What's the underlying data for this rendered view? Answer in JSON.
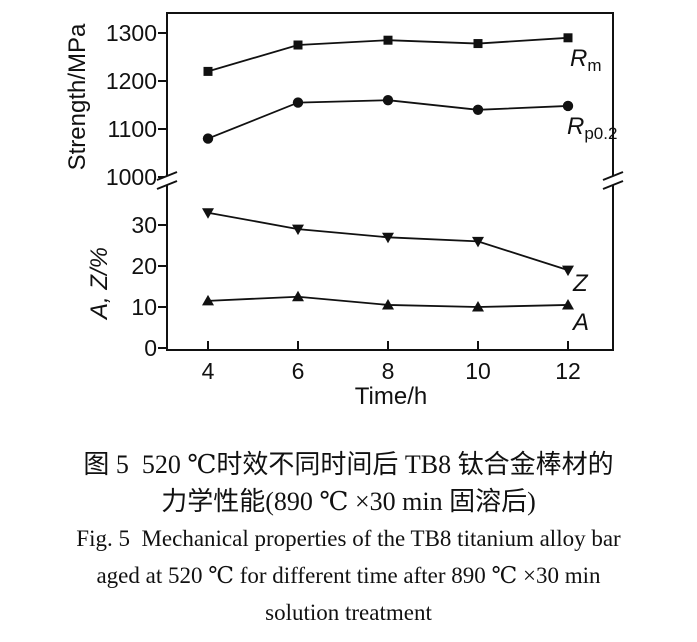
{
  "figure": {
    "caption_zh_line1": "图 5  520 ℃时效不同时间后 TB8 钛合金棒材的",
    "caption_zh_line2": "力学性能(890 ℃ ×30 min 固溶后)",
    "caption_en_line1": "Fig. 5  Mechanical properties of the TB8 titanium alloy bar",
    "caption_en_line2": "aged at 520 ℃ for different time after 890 ℃ ×30 min",
    "caption_en_line3": "solution treatment"
  },
  "chart_data": {
    "type": "line",
    "x": [
      4,
      6,
      8,
      10,
      12
    ],
    "xlabel": "Time/h",
    "x_ticks": [
      4,
      6,
      8,
      10,
      12
    ],
    "grid": false,
    "line_color": "#000000",
    "background": "#ffffff",
    "legend_position": "inline-right-of-last-point",
    "axes": {
      "strength": {
        "label": "Strength/MPa",
        "ticks": [
          1000,
          1100,
          1200,
          1300
        ],
        "range": [
          1000,
          1320
        ],
        "axis_break": "axis broken below 1000"
      },
      "percent": {
        "label": "A, Z/%",
        "ticks": [
          0,
          10,
          20,
          30
        ],
        "range": [
          0,
          36
        ]
      }
    },
    "series": [
      {
        "name": "Rm",
        "label_main": "R",
        "label_sub": "m",
        "axis": "strength",
        "marker": "square",
        "values": [
          1220,
          1275,
          1285,
          1278,
          1290
        ]
      },
      {
        "name": "Rp0.2",
        "label_main": "R",
        "label_sub": "p0.2",
        "axis": "strength",
        "marker": "circle",
        "values": [
          1080,
          1155,
          1160,
          1140,
          1148
        ]
      },
      {
        "name": "Z",
        "label_main": "Z",
        "label_sub": "",
        "axis": "percent",
        "marker": "triangle-down",
        "values": [
          33,
          29,
          27,
          26,
          19
        ]
      },
      {
        "name": "A",
        "label_main": "A",
        "label_sub": "",
        "axis": "percent",
        "marker": "triangle-up",
        "values": [
          11.5,
          12.5,
          10.5,
          10,
          10.5
        ]
      }
    ]
  }
}
